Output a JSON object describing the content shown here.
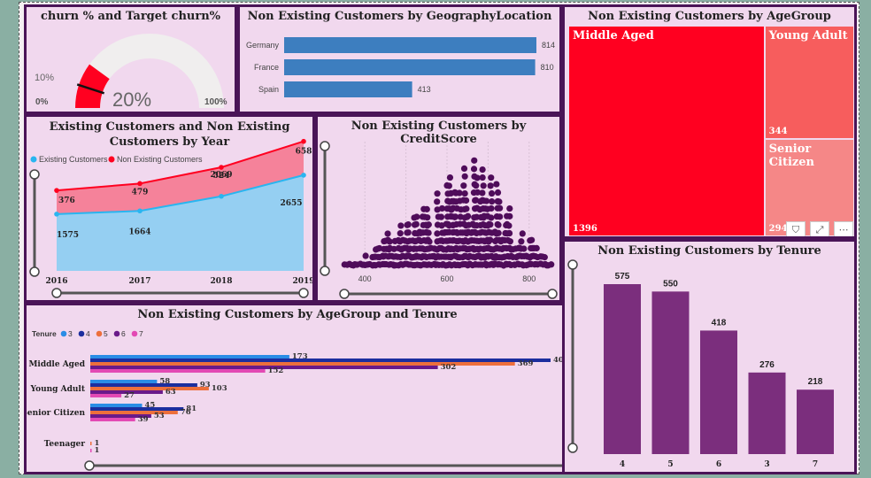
{
  "colors": {
    "card_bg": "#f1d8ee",
    "card_border": "#4a1457",
    "purple": "#7b2e7d",
    "blue": "#3d7ebf",
    "red": "#ff0020",
    "existing": "#29b5f0",
    "scatter": "#4f0c5a"
  },
  "gauge": {
    "title": "churn % and Target churn%",
    "value_label": "20%",
    "target_label": "10%",
    "min_label": "0%",
    "max_label": "100%",
    "value_pct": 20,
    "target_pct": 10
  },
  "geo": {
    "title": "Non Existing Customers by GeographyLocation",
    "categories": [
      "Germany",
      "France",
      "Spain"
    ],
    "values": [
      814,
      810,
      413
    ]
  },
  "treemap": {
    "title": "Non Existing Customers by AgeGroup",
    "items": [
      {
        "name": "Middle Aged",
        "value": 1396,
        "color": "#ff0020"
      },
      {
        "name": "Young Adult",
        "value": 344,
        "color": "#f75d5d"
      },
      {
        "name": "Senior Citizen",
        "value": 294,
        "color": "#f58787"
      }
    ]
  },
  "year": {
    "title": "Existing Customers and Non Existing Customers by Year",
    "legend": [
      "Existing Customers",
      "Non Existing Customers"
    ],
    "x": [
      "2016",
      "2017",
      "2018",
      "2019"
    ],
    "existing": [
      1575,
      1664,
      2069,
      2655
    ],
    "non_existing": [
      376,
      479,
      524,
      658
    ]
  },
  "credit": {
    "title": "Non Existing Customers by CreditScore",
    "ticks": [
      "400",
      "600",
      "800"
    ],
    "xlim": [
      350,
      850
    ]
  },
  "tenure": {
    "title": "Non Existing Customers by Tenure",
    "categories": [
      "4",
      "5",
      "6",
      "3",
      "7"
    ],
    "values": [
      575,
      550,
      418,
      276,
      218
    ]
  },
  "agetenure": {
    "title": "Non Existing Customers by AgeGroup and Tenure",
    "legend_title": "Tenure",
    "series_names": [
      "3",
      "4",
      "5",
      "6",
      "7"
    ],
    "series_colors": [
      "#2a8de6",
      "#1c2e9e",
      "#ed6f3c",
      "#6a1a8a",
      "#e349b4"
    ],
    "groups": [
      "Middle Aged",
      "Young Adult",
      "Senior Citizen",
      "Teenager"
    ],
    "values": [
      [
        173,
        400,
        369,
        302,
        152
      ],
      [
        58,
        93,
        103,
        63,
        27
      ],
      [
        45,
        81,
        76,
        53,
        39
      ],
      [
        null,
        null,
        1,
        null,
        1
      ]
    ],
    "visible_labels": [
      [
        "173",
        "400",
        "369",
        "302",
        "152"
      ],
      [
        "58",
        "93",
        "103",
        "63",
        "27"
      ],
      [
        "45",
        "81",
        "76",
        "53",
        "39"
      ],
      [
        "",
        "",
        "1",
        "",
        "1"
      ]
    ]
  },
  "chart_data": [
    {
      "type": "gauge",
      "title": "churn % and Target churn%",
      "value": 20,
      "target": 10,
      "min": 0,
      "max": 100
    },
    {
      "type": "bar",
      "title": "Non Existing Customers by GeographyLocation",
      "categories": [
        "Germany",
        "France",
        "Spain"
      ],
      "values": [
        814,
        810,
        413
      ]
    },
    {
      "type": "treemap",
      "title": "Non Existing Customers by AgeGroup",
      "categories": [
        "Middle Aged",
        "Young Adult",
        "Senior Citizen"
      ],
      "values": [
        1396,
        344,
        294
      ]
    },
    {
      "type": "area",
      "title": "Existing Customers and Non Existing Customers by Year",
      "categories": [
        "2016",
        "2017",
        "2018",
        "2019"
      ],
      "series": [
        {
          "name": "Existing Customers",
          "values": [
            1575,
            1664,
            2069,
            2655
          ]
        },
        {
          "name": "Non Existing Customers",
          "values": [
            376,
            479,
            524,
            658
          ]
        }
      ]
    },
    {
      "type": "scatter",
      "title": "Non Existing Customers by CreditScore",
      "xlim": [
        350,
        850
      ]
    },
    {
      "type": "bar",
      "title": "Non Existing Customers by Tenure",
      "categories": [
        "4",
        "5",
        "6",
        "3",
        "7"
      ],
      "values": [
        575,
        550,
        418,
        276,
        218
      ]
    },
    {
      "type": "bar",
      "title": "Non Existing Customers by AgeGroup and Tenure",
      "categories": [
        "Middle Aged",
        "Young Adult",
        "Senior Citizen",
        "Teenager"
      ],
      "series": [
        {
          "name": "3",
          "values": [
            173,
            58,
            45,
            null
          ]
        },
        {
          "name": "4",
          "values": [
            400,
            93,
            81,
            null
          ]
        },
        {
          "name": "5",
          "values": [
            369,
            103,
            76,
            1
          ]
        },
        {
          "name": "6",
          "values": [
            302,
            63,
            53,
            null
          ]
        },
        {
          "name": "7",
          "values": [
            152,
            27,
            39,
            1
          ]
        }
      ]
    }
  ]
}
